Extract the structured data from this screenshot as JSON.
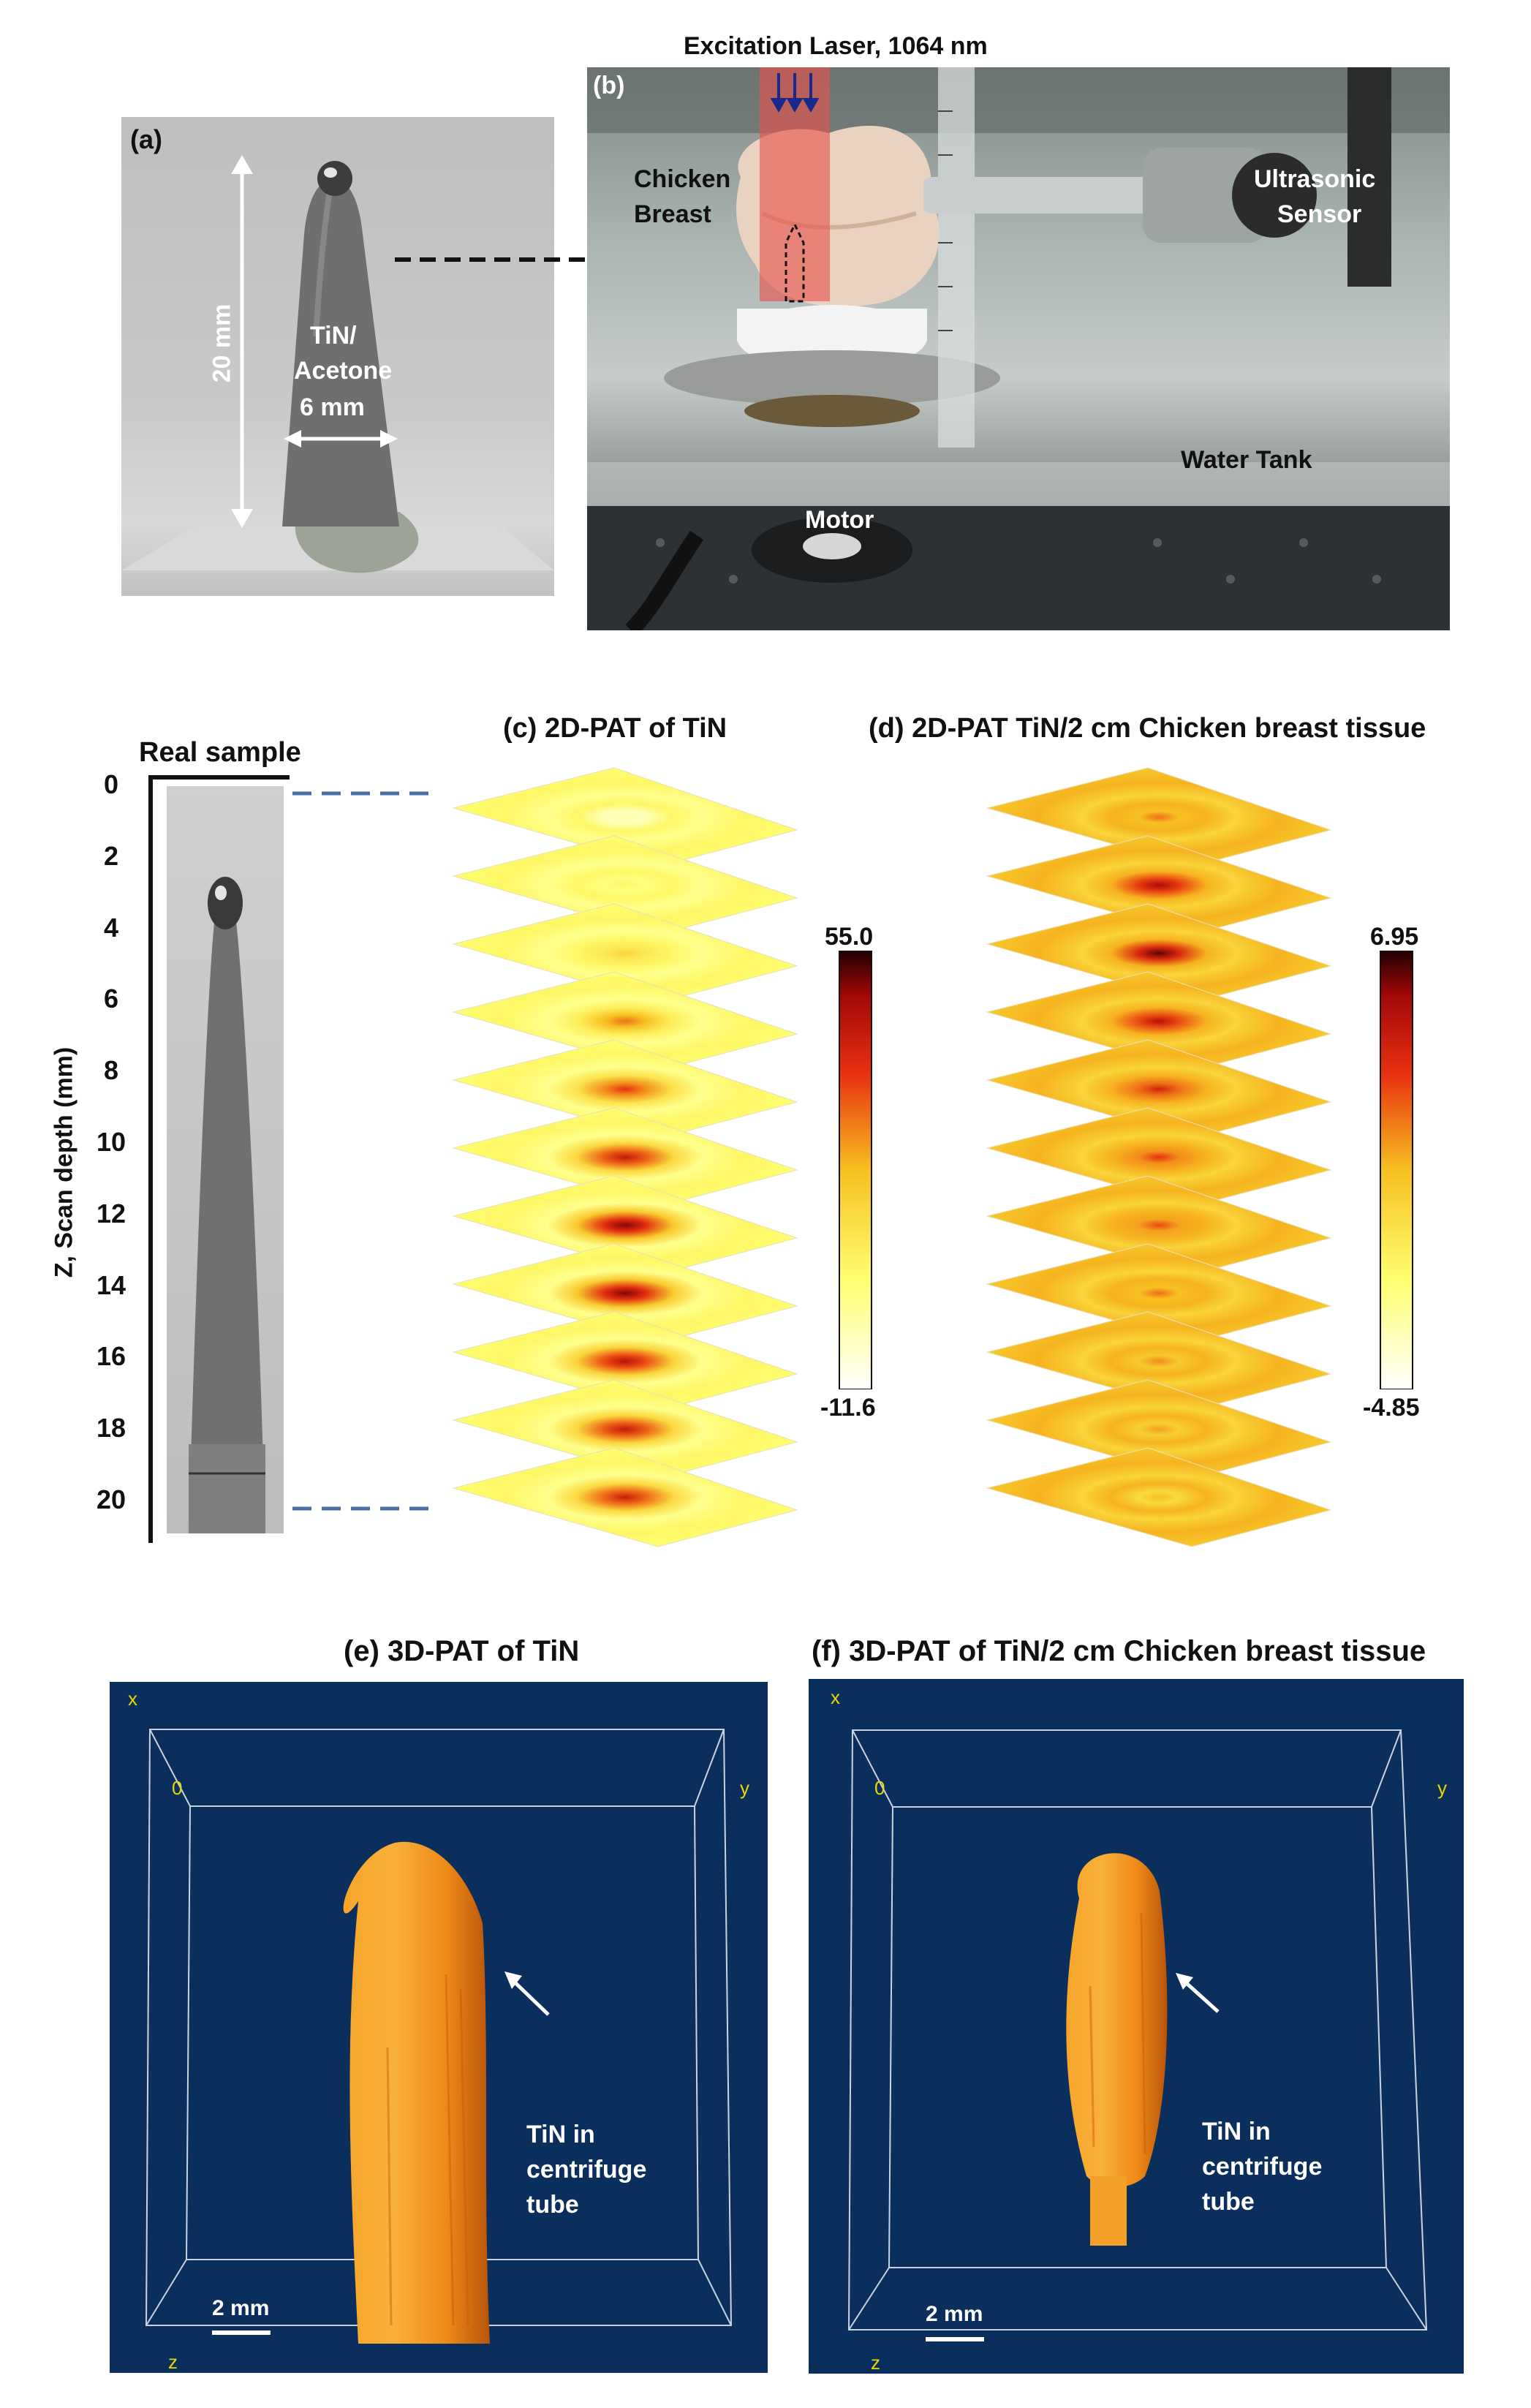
{
  "panel_a": {
    "label": "(a)",
    "height_text": "20 mm",
    "material_line1": "TiN/",
    "material_line2": "Acetone",
    "width_text": "6 mm"
  },
  "panel_b": {
    "label": "(b)",
    "laser_caption": "Excitation Laser, 1064 nm",
    "tissue_line1": "Chicken",
    "tissue_line2": "Breast",
    "sensor_line1": "Ultrasonic",
    "sensor_line2": "Sensor",
    "water_tank": "Water Tank",
    "motor": "Motor"
  },
  "real_sample": {
    "title": "Real sample",
    "axis_label": "Z, Scan depth (mm)",
    "ticks": [
      "0",
      "2",
      "4",
      "6",
      "8",
      "10",
      "12",
      "14",
      "16",
      "18",
      "20"
    ]
  },
  "panel_c": {
    "title": "(c) 2D-PAT of TiN",
    "colorbar_max": "55.0",
    "colorbar_min": "-11.6",
    "slice_peak_levels": [
      0.15,
      0.28,
      0.42,
      0.62,
      0.72,
      0.82,
      0.92,
      0.92,
      0.85,
      0.82,
      0.8
    ]
  },
  "panel_d": {
    "title": "(d) 2D-PAT TiN/2 cm Chicken breast tissue",
    "colorbar_max": "6.95",
    "colorbar_min": "-4.85",
    "slice_peak_levels": [
      0.62,
      0.88,
      0.95,
      0.85,
      0.78,
      0.72,
      0.68,
      0.62,
      0.58,
      0.55,
      0.5
    ]
  },
  "panel_e": {
    "title": "(e) 3D-PAT of TiN",
    "axis_x": "x",
    "axis_y": "y",
    "axis_z": "z",
    "origin": "0",
    "annotation_line1": "TiN in",
    "annotation_line2": "centrifuge",
    "annotation_line3": "tube",
    "scalebar": "2 mm"
  },
  "panel_f": {
    "title": "(f) 3D-PAT of TiN/2 cm Chicken breast tissue",
    "axis_x": "x",
    "axis_y": "y",
    "axis_z": "z",
    "origin": "0",
    "annotation_line1": "TiN in",
    "annotation_line2": "centrifuge",
    "annotation_line3": "tube",
    "scalebar": "2 mm"
  },
  "colors": {
    "volume_bg": "#0b2f5c",
    "laser_beam": "#e8504a",
    "render_orange": "#f4901c",
    "render_dark": "#c85a08"
  }
}
